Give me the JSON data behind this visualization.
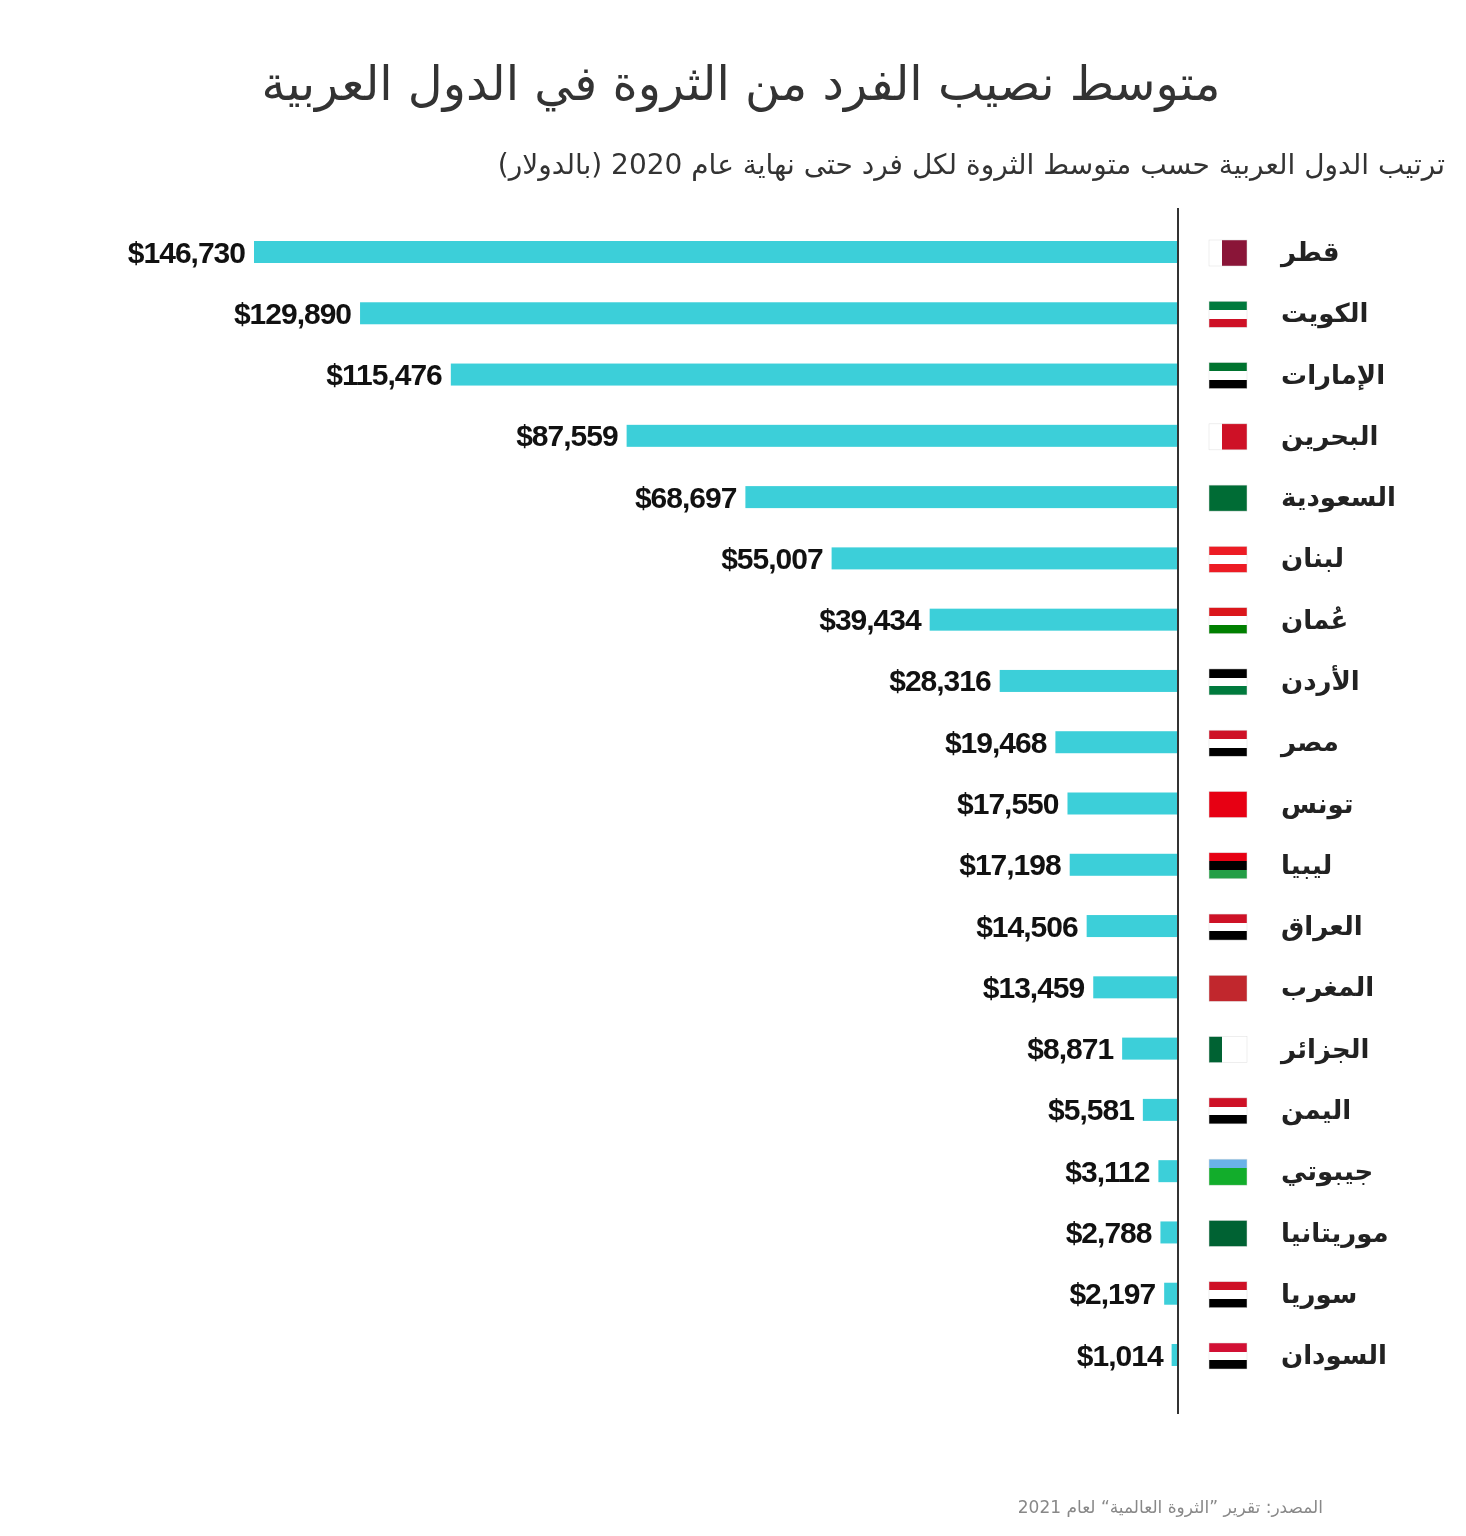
{
  "chart_data": {
    "type": "bar",
    "orientation": "horizontal",
    "title": "متوسط نصيب الفرد من الثروة في الدول العربية",
    "subtitle": "ترتيب الدول العربية حسب متوسط الثروة لكل فرد حتى نهاية عام 2020 (بالدولار)",
    "categories": [
      "قطر",
      "الكويت",
      "الإمارات",
      "البحرين",
      "السعودية",
      "لبنان",
      "عُمان",
      "الأردن",
      "مصر",
      "تونس",
      "ليبيا",
      "العراق",
      "المغرب",
      "الجزائر",
      "اليمن",
      "جيبوتي",
      "موريتانيا",
      "سوريا",
      "السودان"
    ],
    "values": [
      146730,
      129890,
      115476,
      87559,
      68697,
      55007,
      39434,
      28316,
      19468,
      17550,
      17198,
      14506,
      13459,
      8871,
      5581,
      3112,
      2788,
      2197,
      1014
    ],
    "value_labels": [
      "$146,730",
      "$129,890",
      "$115,476",
      "$87,559",
      "$68,697",
      "$55,007",
      "$39,434",
      "$28,316",
      "$19,468",
      "$17,550",
      "$17,198",
      "$14,506",
      "$13,459",
      "$8,871",
      "$5,581",
      "$3,112",
      "$2,788",
      "$2,197",
      "$1,014"
    ],
    "color": "#3ccfd9",
    "annotations": [
      "المصدر: تقرير ”الثروة العالمية“ لعام 2021"
    ]
  }
}
